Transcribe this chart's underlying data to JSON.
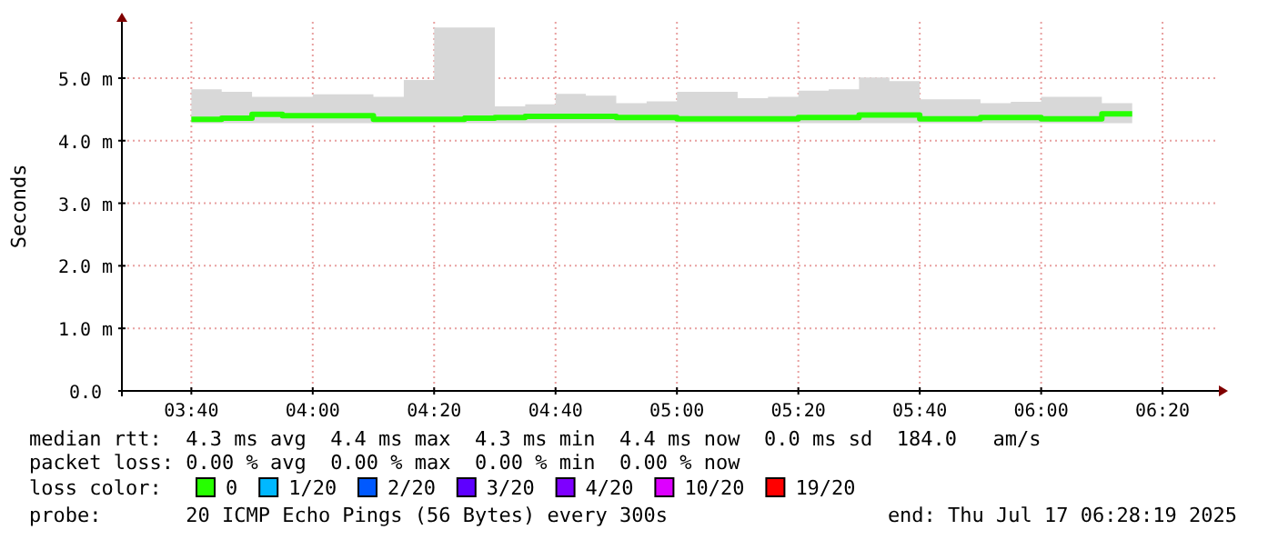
{
  "chart_data": {
    "type": "line",
    "ylabel": "Seconds",
    "x": [
      3.6667,
      3.7083,
      3.7917,
      3.875,
      3.9583,
      4.0417,
      4.125,
      4.2083,
      4.2917,
      4.375,
      4.4583,
      4.5417,
      4.625,
      4.7083,
      4.7917,
      4.875,
      4.9583,
      5.0417,
      5.125,
      5.2083,
      5.2917,
      5.375,
      5.4583,
      5.5417,
      5.625,
      5.7083,
      5.7917,
      5.875,
      5.9583,
      6.0417,
      6.125,
      6.2083,
      6.25
    ],
    "series": [
      {
        "name": "0",
        "color": "#26ff00",
        "values": [
          4.34,
          4.34,
          4.36,
          4.42,
          4.4,
          4.4,
          4.4,
          4.34,
          4.34,
          4.34,
          4.36,
          4.37,
          4.39,
          4.39,
          4.39,
          4.37,
          4.37,
          4.35,
          4.35,
          4.35,
          4.35,
          4.37,
          4.37,
          4.41,
          4.41,
          4.35,
          4.35,
          4.37,
          4.37,
          4.35,
          4.35,
          4.43,
          4.43
        ],
        "lower": [
          4.28,
          4.28,
          4.28,
          4.28,
          4.28,
          4.28,
          4.28,
          4.28,
          4.28,
          4.28,
          4.28,
          4.28,
          4.28,
          4.28,
          4.28,
          4.28,
          4.28,
          4.28,
          4.28,
          4.28,
          4.28,
          4.28,
          4.28,
          4.28,
          4.28,
          4.28,
          4.28,
          4.28,
          4.28,
          4.28,
          4.28,
          4.28,
          4.28
        ],
        "upper": [
          4.82,
          4.82,
          4.78,
          4.7,
          4.7,
          4.74,
          4.74,
          4.7,
          4.97,
          5.81,
          5.81,
          4.55,
          4.58,
          4.75,
          4.72,
          4.6,
          4.63,
          4.78,
          4.78,
          4.68,
          4.7,
          4.8,
          4.82,
          5.01,
          4.95,
          4.66,
          4.66,
          4.6,
          4.62,
          4.7,
          4.7,
          4.6,
          4.6
        ]
      },
      {
        "name": "1/20",
        "color": "#00b8ff",
        "values": [
          null,
          null,
          null,
          null,
          null,
          null,
          null,
          null,
          null,
          null,
          null,
          null,
          null,
          null,
          null,
          null,
          null,
          null,
          null,
          null,
          null,
          null,
          null,
          null,
          null,
          null,
          null,
          null,
          null,
          null,
          null,
          null,
          null
        ]
      },
      {
        "name": "2/20",
        "color": "#0059ff",
        "values": [
          null,
          null,
          null,
          null,
          null,
          null,
          null,
          null,
          null,
          null,
          null,
          null,
          null,
          null,
          null,
          null,
          null,
          null,
          null,
          null,
          null,
          null,
          null,
          null,
          null,
          null,
          null,
          null,
          null,
          null,
          null,
          null,
          null
        ]
      },
      {
        "name": "3/20",
        "color": "#5e00ff",
        "values": [
          null,
          null,
          null,
          null,
          null,
          null,
          null,
          null,
          null,
          null,
          null,
          null,
          null,
          null,
          null,
          null,
          null,
          null,
          null,
          null,
          null,
          null,
          null,
          null,
          null,
          null,
          null,
          null,
          null,
          null,
          null,
          null,
          null
        ]
      },
      {
        "name": "4/20",
        "color": "#7e00ff",
        "values": [
          null,
          null,
          null,
          null,
          null,
          null,
          null,
          null,
          null,
          null,
          null,
          null,
          null,
          null,
          null,
          null,
          null,
          null,
          null,
          null,
          null,
          null,
          null,
          null,
          null,
          null,
          null,
          null,
          null,
          null,
          null,
          null,
          null
        ]
      },
      {
        "name": "10/20",
        "color": "#dd00ff",
        "values": [
          null,
          null,
          null,
          null,
          null,
          null,
          null,
          null,
          null,
          null,
          null,
          null,
          null,
          null,
          null,
          null,
          null,
          null,
          null,
          null,
          null,
          null,
          null,
          null,
          null,
          null,
          null,
          null,
          null,
          null,
          null,
          null,
          null
        ]
      },
      {
        "name": "19/20",
        "color": "#ff0000",
        "values": [
          null,
          null,
          null,
          null,
          null,
          null,
          null,
          null,
          null,
          null,
          null,
          null,
          null,
          null,
          null,
          null,
          null,
          null,
          null,
          null,
          null,
          null,
          null,
          null,
          null,
          null,
          null,
          null,
          null,
          null,
          null,
          null,
          null
        ]
      }
    ],
    "xlim": [
      3.476,
      6.478
    ],
    "xticks": [
      {
        "value": 3.6667,
        "label": "03:40"
      },
      {
        "value": 4,
        "label": "04:00"
      },
      {
        "value": 4.3333,
        "label": "04:20"
      },
      {
        "value": 4.6667,
        "label": "04:40"
      },
      {
        "value": 5,
        "label": "05:00"
      },
      {
        "value": 5.3333,
        "label": "05:20"
      },
      {
        "value": 5.6667,
        "label": "05:40"
      },
      {
        "value": 6,
        "label": "06:00"
      },
      {
        "value": 6.3333,
        "label": "06:20"
      }
    ],
    "ylim": [
      0,
      5.9
    ],
    "yticks": [
      {
        "value": 0,
        "label": "0.0"
      },
      {
        "value": 1,
        "label": "1.0 m"
      },
      {
        "value": 2,
        "label": "2.0 m"
      },
      {
        "value": 3,
        "label": "3.0 m"
      },
      {
        "value": 4,
        "label": "4.0 m"
      },
      {
        "value": 5,
        "label": "5.0 m"
      }
    ],
    "grid": true,
    "legend": "bottom",
    "line_style": "solid",
    "annotations": [
      "median rtt:  4.3 ms avg  4.4 ms max  4.3 ms min  4.4 ms now  0.0 ms sd  184.0   am/s",
      "packet loss: 0.00 % avg  0.00 % max  0.00 % min  0.00 % now",
      "loss color:",
      "probe:       20 ICMP Echo Pings (56 Bytes) every 300s",
      "end: Thu Jul 17 06:28:19 2025"
    ]
  }
}
